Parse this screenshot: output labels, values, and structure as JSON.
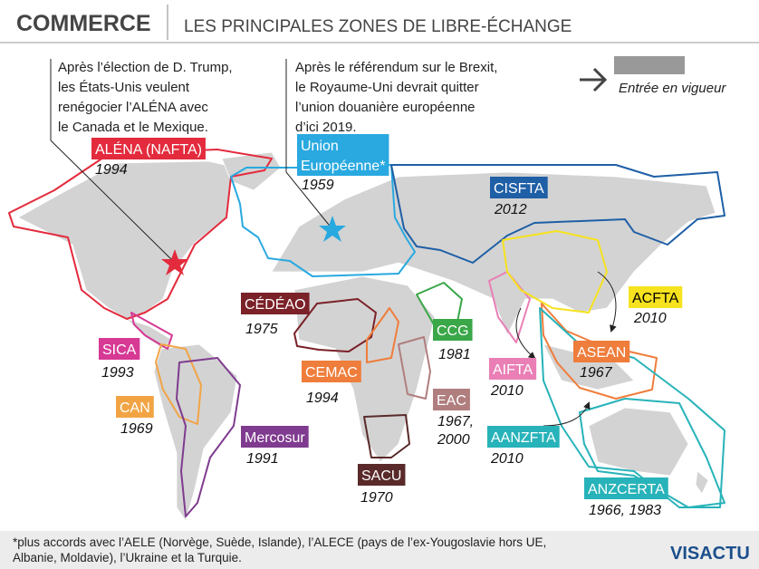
{
  "header": {
    "title": "COMMERCE",
    "subtitle": "LES PRINCIPALES ZONES DE LIBRE-ÉCHANGE"
  },
  "notes": [
    {
      "lines": [
        "Après l’élection de D. Trump,",
        "les États-Unis veulent",
        "renégocier l’ALÉNA avec",
        "le Canada et le Mexique."
      ]
    },
    {
      "lines": [
        "Après le référendum sur le Brexit,",
        "le Royaume-Uni devrait quitter",
        "l’union douanière européenne",
        "d’ici 2019."
      ]
    }
  ],
  "legend": {
    "label": "Entrée en vigueur"
  },
  "zones": [
    {
      "name_lines": [
        "ALÉNA (NAFTA)"
      ],
      "year_lines": [
        "1994"
      ],
      "color": "#e32b3d"
    },
    {
      "name_lines": [
        "Union",
        "Européenne*"
      ],
      "year_lines": [
        "1959"
      ],
      "color": "#29a9e0"
    },
    {
      "name_lines": [
        "CISFTA"
      ],
      "year_lines": [
        "2012"
      ],
      "color": "#1f5fa6"
    },
    {
      "name_lines": [
        "CÉDÉAO"
      ],
      "year_lines": [
        "1975"
      ],
      "color": "#7b2128"
    },
    {
      "name_lines": [
        "CEMAC"
      ],
      "year_lines": [
        "1994"
      ],
      "color": "#ef7d3b"
    },
    {
      "name_lines": [
        "CCG"
      ],
      "year_lines": [
        "1981"
      ],
      "color": "#3aa748"
    },
    {
      "name_lines": [
        "EAC"
      ],
      "year_lines": [
        "1967,",
        "2000"
      ],
      "color": "#b07e7e"
    },
    {
      "name_lines": [
        "SACU"
      ],
      "year_lines": [
        "1970"
      ],
      "color": "#5a2a2a"
    },
    {
      "name_lines": [
        "SICA"
      ],
      "year_lines": [
        "1993"
      ],
      "color": "#d63a94"
    },
    {
      "name_lines": [
        "CAN"
      ],
      "year_lines": [
        "1969"
      ],
      "color": "#f2a445"
    },
    {
      "name_lines": [
        "Mercosur"
      ],
      "year_lines": [
        "1991"
      ],
      "color": "#7f3b8f"
    },
    {
      "name_lines": [
        "AIFTA"
      ],
      "year_lines": [
        "2010"
      ],
      "color": "#e97fb5"
    },
    {
      "name_lines": [
        "ACFTA"
      ],
      "year_lines": [
        "2010"
      ],
      "color": "#f6e21e",
      "text_color": "#000000"
    },
    {
      "name_lines": [
        "ASEAN"
      ],
      "year_lines": [
        "1967"
      ],
      "color": "#ef7d3b"
    },
    {
      "name_lines": [
        "AANZFTA"
      ],
      "year_lines": [
        "2010"
      ],
      "color": "#27b3b9"
    },
    {
      "name_lines": [
        "ANZCERTA"
      ],
      "year_lines": [
        "1966, 1983"
      ],
      "color": "#27b3b9"
    }
  ],
  "footer": {
    "lines": [
      "*plus accords avec l’AELE (Norvège, Suède, Islande), l’ALECE (pays de l’ex-Yougoslavie hors UE,",
      "Albanie, Moldavie), l’Ukraine et la Turquie."
    ],
    "logo": "VISACTU"
  }
}
